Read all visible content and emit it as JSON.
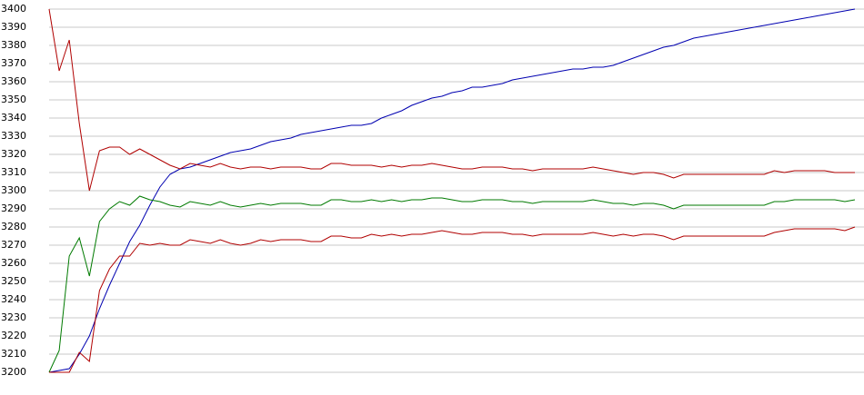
{
  "chart_data": {
    "type": "line",
    "categories": [
      null,
      null,
      null,
      null,
      null,
      null,
      null,
      null,
      null,
      null,
      null,
      null,
      null,
      null,
      null,
      null,
      null,
      null,
      null,
      null,
      null,
      null,
      null,
      null,
      null,
      null,
      null,
      null,
      null,
      null,
      null,
      null,
      null,
      null,
      null,
      null,
      null,
      null,
      null,
      null,
      null,
      null,
      null,
      null,
      null,
      null,
      null,
      null,
      null,
      null,
      null,
      null,
      null,
      null,
      null,
      null,
      null,
      null,
      null,
      null,
      null,
      null,
      null,
      null,
      null,
      null,
      null,
      null,
      null,
      null,
      null,
      null,
      null,
      null,
      null,
      null,
      null,
      null,
      null,
      null,
      null
    ],
    "ylim": [
      3200,
      3400
    ],
    "yticks": [
      3200,
      3210,
      3220,
      3230,
      3240,
      3250,
      3260,
      3270,
      3280,
      3290,
      3300,
      3310,
      3320,
      3330,
      3340,
      3350,
      3360,
      3370,
      3380,
      3390,
      3400
    ],
    "grid": true,
    "series": [
      {
        "color": "#0000b0",
        "values": [
          3200,
          3201,
          3202,
          3210,
          3220,
          3235,
          3248,
          3260,
          3272,
          3281,
          3292,
          3302,
          3309,
          3312,
          3313,
          3315,
          3317,
          3319,
          3321,
          3322,
          3323,
          3325,
          3327,
          3328,
          3329,
          3331,
          3332,
          3333,
          3334,
          3335,
          3336,
          3336,
          3337,
          3340,
          3342,
          3344,
          3347,
          3349,
          3351,
          3352,
          3354,
          3355,
          3357,
          3357,
          3358,
          3359,
          3361,
          3362,
          3363,
          3364,
          3365,
          3366,
          3367,
          3367,
          3368,
          3368,
          3369,
          3371,
          3373,
          3375,
          3377,
          3379,
          3380,
          3382,
          3384,
          3385,
          3386,
          3387,
          3388,
          3389,
          3390,
          3391,
          3392,
          3393,
          3394,
          3395,
          3396,
          3397,
          3398,
          3399,
          3400
        ]
      },
      {
        "color": "#b00000",
        "values": [
          3400,
          3366,
          3383,
          3337,
          3300,
          3322,
          3324,
          3324,
          3320,
          3323,
          3320,
          3317,
          3314,
          3312,
          3315,
          3314,
          3313,
          3315,
          3313,
          3312,
          3313,
          3313,
          3312,
          3313,
          3313,
          3313,
          3312,
          3312,
          3315,
          3315,
          3314,
          3314,
          3314,
          3313,
          3314,
          3313,
          3314,
          3314,
          3315,
          3314,
          3313,
          3312,
          3312,
          3313,
          3313,
          3313,
          3312,
          3312,
          3311,
          3312,
          3312,
          3312,
          3312,
          3312,
          3313,
          3312,
          3311,
          3310,
          3309,
          3310,
          3310,
          3309,
          3307,
          3309,
          3309,
          3309,
          3309,
          3309,
          3309,
          3309,
          3309,
          3309,
          3311,
          3310,
          3311,
          3311,
          3311,
          3311,
          3310,
          3310,
          3310
        ]
      },
      {
        "color": "#007a00",
        "values": [
          3200,
          3212,
          3264,
          3274,
          3253,
          3283,
          3290,
          3294,
          3292,
          3297,
          3295,
          3294,
          3292,
          3291,
          3294,
          3293,
          3292,
          3294,
          3292,
          3291,
          3292,
          3293,
          3292,
          3293,
          3293,
          3293,
          3292,
          3292,
          3295,
          3295,
          3294,
          3294,
          3295,
          3294,
          3295,
          3294,
          3295,
          3295,
          3296,
          3296,
          3295,
          3294,
          3294,
          3295,
          3295,
          3295,
          3294,
          3294,
          3293,
          3294,
          3294,
          3294,
          3294,
          3294,
          3295,
          3294,
          3293,
          3293,
          3292,
          3293,
          3293,
          3292,
          3290,
          3292,
          3292,
          3292,
          3292,
          3292,
          3292,
          3292,
          3292,
          3292,
          3294,
          3294,
          3295,
          3295,
          3295,
          3295,
          3295,
          3294,
          3295
        ]
      },
      {
        "color": "#b00000",
        "values": [
          3200,
          3200,
          3200,
          3211,
          3206,
          3245,
          3257,
          3264,
          3264,
          3271,
          3270,
          3271,
          3270,
          3270,
          3273,
          3272,
          3271,
          3273,
          3271,
          3270,
          3271,
          3273,
          3272,
          3273,
          3273,
          3273,
          3272,
          3272,
          3275,
          3275,
          3274,
          3274,
          3276,
          3275,
          3276,
          3275,
          3276,
          3276,
          3277,
          3278,
          3277,
          3276,
          3276,
          3277,
          3277,
          3277,
          3276,
          3276,
          3275,
          3276,
          3276,
          3276,
          3276,
          3276,
          3277,
          3276,
          3275,
          3276,
          3275,
          3276,
          3276,
          3275,
          3273,
          3275,
          3275,
          3275,
          3275,
          3275,
          3275,
          3275,
          3275,
          3275,
          3277,
          3278,
          3279,
          3279,
          3279,
          3279,
          3279,
          3278,
          3280
        ]
      }
    ]
  }
}
